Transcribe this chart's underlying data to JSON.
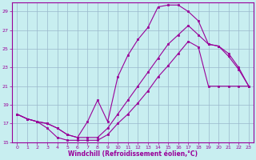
{
  "xlabel": "Windchill (Refroidissement éolien,°C)",
  "xlim": [
    -0.5,
    23.5
  ],
  "ylim": [
    15,
    30
  ],
  "yticks": [
    15,
    17,
    19,
    21,
    23,
    25,
    27,
    29
  ],
  "xticks": [
    0,
    1,
    2,
    3,
    4,
    5,
    6,
    7,
    8,
    9,
    10,
    11,
    12,
    13,
    14,
    15,
    16,
    17,
    18,
    19,
    20,
    21,
    22,
    23
  ],
  "background_color": "#c8eef0",
  "grid_color": "#9ab8cc",
  "line_color": "#990099",
  "curve1_x": [
    0,
    1,
    2,
    3,
    4,
    5,
    6,
    7,
    8,
    9,
    10,
    11,
    12,
    13,
    14,
    15,
    16,
    17,
    18,
    19,
    20,
    21,
    22,
    23
  ],
  "curve1_y": [
    18,
    17.5,
    17.2,
    16.5,
    15.5,
    15.2,
    15.2,
    15.2,
    15.2,
    15.8,
    17.0,
    18.0,
    19.2,
    20.5,
    22.0,
    23.2,
    24.5,
    25.8,
    25.2,
    21.0,
    21.0,
    21.0,
    21.0,
    21.0
  ],
  "curve2_x": [
    0,
    1,
    2,
    3,
    4,
    5,
    6,
    7,
    8,
    9,
    10,
    11,
    12,
    13,
    14,
    15,
    16,
    17,
    18,
    19,
    20,
    21,
    22,
    23
  ],
  "curve2_y": [
    18,
    17.5,
    17.2,
    17.0,
    16.5,
    15.8,
    15.5,
    17.2,
    19.5,
    17.2,
    22.0,
    24.3,
    26.0,
    27.3,
    29.5,
    29.7,
    29.7,
    29.0,
    28.0,
    25.5,
    25.3,
    24.5,
    23.0,
    21.0
  ],
  "curve3_x": [
    0,
    1,
    2,
    3,
    4,
    5,
    6,
    7,
    8,
    9,
    10,
    11,
    12,
    13,
    14,
    15,
    16,
    17,
    18,
    19,
    20,
    21,
    22,
    23
  ],
  "curve3_y": [
    18,
    17.5,
    17.2,
    17.0,
    16.5,
    15.8,
    15.5,
    15.5,
    15.5,
    16.5,
    18.0,
    19.5,
    21.0,
    22.5,
    24.0,
    25.5,
    26.5,
    27.5,
    26.5,
    25.5,
    25.3,
    24.2,
    22.8,
    21.0
  ]
}
